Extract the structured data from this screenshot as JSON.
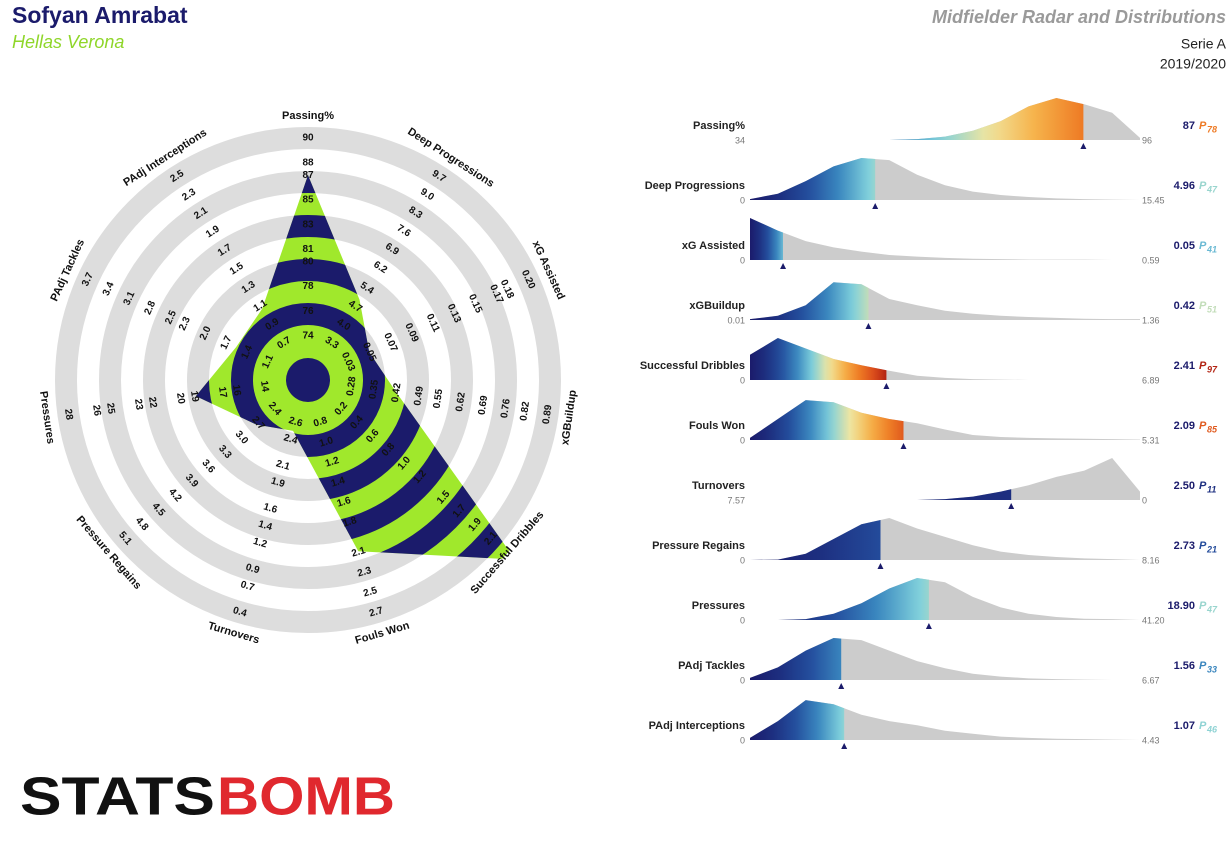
{
  "chart_data": {
    "type": "radar-distribution",
    "player": "Sofyan Amrabat",
    "team": "Hellas Verona",
    "title": "Midfielder Radar and Distributions",
    "competition": "Serie A",
    "season": "2019/2020",
    "logo": [
      "STATS",
      "BOMB"
    ],
    "percentile_prefix": "P",
    "colors": {
      "navy": "#1b1b6b",
      "lime": "#a0e82c",
      "ring": "#dddddd",
      "curve": "#cccccc",
      "team": "#8fd62a",
      "logo_dark": "#111111",
      "logo_red": "#e0282e"
    },
    "color_scale": [
      "#1b1b6b",
      "#1d2f80",
      "#244f9e",
      "#3a87bf",
      "#7fd0dc",
      "#f0e6a0",
      "#f6b24a",
      "#ee7b24",
      "#d9481b",
      "#a3150f"
    ],
    "metrics": [
      {
        "name": "Passing%",
        "value": 87,
        "value_label": "87",
        "percentile": 78,
        "xlim": [
          34,
          96
        ],
        "radar_ticks": [
          74,
          76,
          78,
          80,
          81,
          83,
          85,
          87,
          88,
          90
        ],
        "density": [
          0,
          0,
          0,
          0,
          0,
          0,
          0.02,
          0.08,
          0.22,
          0.45,
          0.8,
          1.0,
          0.85,
          0.65,
          0.05
        ]
      },
      {
        "name": "Deep Progressions",
        "value": 4.96,
        "value_label": "4.96",
        "percentile": 47,
        "xlim": [
          0,
          15.45
        ],
        "radar_ticks": [
          3.3,
          {
            "value": 4,
            "label": "4.0"
          },
          4.7,
          5.4,
          6.2,
          6.9,
          7.6,
          8.3,
          {
            "value": 9,
            "label": "9.0"
          },
          9.7
        ],
        "density": [
          0.02,
          0.15,
          0.45,
          0.8,
          1.0,
          0.95,
          0.6,
          0.35,
          0.2,
          0.12,
          0.07,
          0.04,
          0.02,
          0.01,
          0
        ]
      },
      {
        "name": "xG Assisted",
        "value": 0.05,
        "value_label": "0.05",
        "percentile": 41,
        "xlim": [
          0,
          0.59
        ],
        "radar_ticks": [
          0.03,
          0.05,
          0.07,
          0.09,
          0.11,
          0.13,
          0.15,
          0.17,
          0.18,
          {
            "value": 0.2,
            "label": "0.20"
          }
        ],
        "density": [
          1.0,
          0.7,
          0.45,
          0.3,
          0.2,
          0.12,
          0.08,
          0.05,
          0.03,
          0.02,
          0.01,
          0.01,
          0.01,
          0,
          0
        ]
      },
      {
        "name": "xGBuildup",
        "value": 0.42,
        "value_label": "0.42",
        "percentile": 51,
        "xlim": [
          0.01,
          1.36
        ],
        "radar_ticks": [
          0.28,
          0.35,
          0.42,
          0.49,
          0.55,
          0.62,
          0.69,
          0.76,
          0.82,
          0.89
        ],
        "density": [
          0.02,
          0.1,
          0.35,
          0.9,
          0.85,
          0.5,
          0.35,
          0.22,
          0.15,
          0.1,
          0.07,
          0.05,
          0.03,
          0.02,
          0.02
        ]
      },
      {
        "name": "Successful Dribbles",
        "value": 2.41,
        "value_label": "2.41",
        "percentile": 97,
        "xlim": [
          0,
          6.89
        ],
        "radar_ticks": [
          0.2,
          0.4,
          0.6,
          0.8,
          {
            "value": 1,
            "label": "1.0"
          },
          1.2,
          1.5,
          1.7,
          1.9,
          2.1
        ],
        "density": [
          0.6,
          1.0,
          0.75,
          0.5,
          0.35,
          0.22,
          0.1,
          0.05,
          0.02,
          0.01,
          0,
          0,
          0,
          0,
          0
        ]
      },
      {
        "name": "Fouls Won",
        "value": 2.09,
        "value_label": "2.09",
        "percentile": 85,
        "xlim": [
          0,
          5.31
        ],
        "radar_ticks": [
          0.8,
          {
            "value": 1,
            "label": "1.0"
          },
          1.2,
          1.4,
          1.6,
          1.8,
          2.1,
          2.3,
          2.5,
          2.7
        ],
        "density": [
          0.05,
          0.5,
          0.95,
          0.9,
          0.65,
          0.5,
          0.4,
          0.25,
          0.12,
          0.07,
          0.05,
          0.04,
          0.03,
          0.02,
          0.01
        ]
      },
      {
        "name": "Turnovers",
        "value": 2.5,
        "value_label": "2.50",
        "percentile": 11,
        "xlim": [
          7.57,
          0
        ],
        "radar_ticks": [
          2.6,
          2.4,
          2.1,
          1.9,
          1.6,
          1.4,
          1.2,
          0.9,
          0.7,
          0.4
        ],
        "density": [
          0,
          0,
          0,
          0,
          0,
          0,
          0,
          0.02,
          0.08,
          0.2,
          0.35,
          0.55,
          0.7,
          1.0,
          0.2
        ]
      },
      {
        "name": "Pressure Regains",
        "value": 2.73,
        "value_label": "2.73",
        "percentile": 21,
        "xlim": [
          0,
          8.16
        ],
        "radar_ticks": [
          2.4,
          2.7,
          {
            "value": 3,
            "label": "3.0"
          },
          3.3,
          3.6,
          3.9,
          4.2,
          4.5,
          4.8,
          5.1
        ],
        "density": [
          0,
          0.01,
          0.15,
          0.5,
          0.85,
          1.0,
          0.75,
          0.55,
          0.35,
          0.2,
          0.12,
          0.07,
          0.04,
          0.02,
          0
        ]
      },
      {
        "name": "Pressures",
        "value": 18.9,
        "value_label": "18.90",
        "percentile": 47,
        "xlim": [
          0,
          {
            "value": 41.2,
            "label": "41.20"
          }
        ],
        "radar_ticks": [
          14,
          16,
          17,
          19,
          20,
          22,
          23,
          25,
          26,
          28
        ],
        "density": [
          0,
          0,
          0.02,
          0.15,
          0.4,
          0.75,
          1.0,
          0.9,
          0.55,
          0.3,
          0.15,
          0.07,
          0.03,
          0.02,
          0
        ]
      },
      {
        "name": "PAdj Tackles",
        "value": 1.56,
        "value_label": "1.56",
        "percentile": 33,
        "xlim": [
          0,
          6.67
        ],
        "radar_ticks": [
          1.1,
          1.4,
          1.7,
          {
            "value": 2,
            "label": "2.0"
          },
          2.3,
          2.5,
          2.8,
          3.1,
          3.4,
          3.7
        ],
        "density": [
          0.05,
          0.3,
          0.7,
          1.0,
          0.95,
          0.7,
          0.45,
          0.28,
          0.15,
          0.08,
          0.04,
          0.02,
          0.01,
          0,
          0
        ]
      },
      {
        "name": "PAdj Interceptions",
        "value": 1.07,
        "value_label": "1.07",
        "percentile": 46,
        "xlim": [
          0,
          4.43
        ],
        "radar_ticks": [
          0.7,
          0.9,
          1.1,
          1.3,
          1.5,
          1.7,
          1.9,
          2.1,
          2.3,
          2.5
        ],
        "density": [
          0.05,
          0.45,
          0.95,
          0.85,
          0.6,
          0.45,
          0.35,
          0.22,
          0.15,
          0.08,
          0.05,
          0.03,
          0.02,
          0.01,
          0
        ]
      }
    ]
  }
}
